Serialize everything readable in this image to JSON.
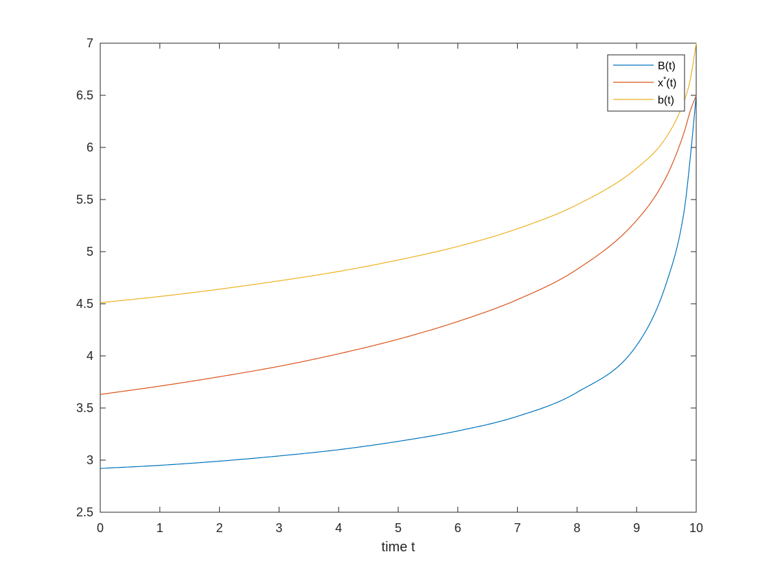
{
  "chart_data": {
    "type": "line",
    "xlabel": "time t",
    "ylabel": "",
    "xlim": [
      0,
      10
    ],
    "ylim": [
      2.5,
      7
    ],
    "x_ticks": [
      "0",
      "1",
      "2",
      "3",
      "4",
      "5",
      "6",
      "7",
      "8",
      "9",
      "10"
    ],
    "y_ticks": [
      "2.5",
      "3",
      "3.5",
      "4",
      "4.5",
      "5",
      "5.5",
      "6",
      "6.5",
      "7"
    ],
    "grid": false,
    "legend_position": "top-right",
    "x": [
      0,
      1,
      2,
      3,
      4,
      5,
      6,
      7,
      8,
      9,
      9.5,
      9.8,
      9.9,
      10
    ],
    "series": [
      {
        "name": "B(t)",
        "legend_main": "B(t)",
        "legend_sup": "",
        "legend_tail": "",
        "color": "#0072BD",
        "values": [
          2.92,
          2.95,
          2.99,
          3.04,
          3.1,
          3.18,
          3.28,
          3.42,
          3.65,
          4.1,
          4.7,
          5.4,
          5.9,
          6.5
        ]
      },
      {
        "name": "x*(t)",
        "legend_main": "x",
        "legend_sup": "*",
        "legend_tail": "(t)",
        "color": "#D95319",
        "values": [
          3.63,
          3.71,
          3.8,
          3.9,
          4.02,
          4.16,
          4.33,
          4.54,
          4.83,
          5.3,
          5.72,
          6.15,
          6.35,
          6.5
        ]
      },
      {
        "name": "b(t)",
        "legend_main": "b(t)",
        "legend_sup": "",
        "legend_tail": "",
        "color": "#EDB120",
        "values": [
          4.51,
          4.57,
          4.64,
          4.72,
          4.81,
          4.92,
          5.05,
          5.22,
          5.45,
          5.8,
          6.1,
          6.45,
          6.65,
          7.0
        ]
      }
    ]
  }
}
